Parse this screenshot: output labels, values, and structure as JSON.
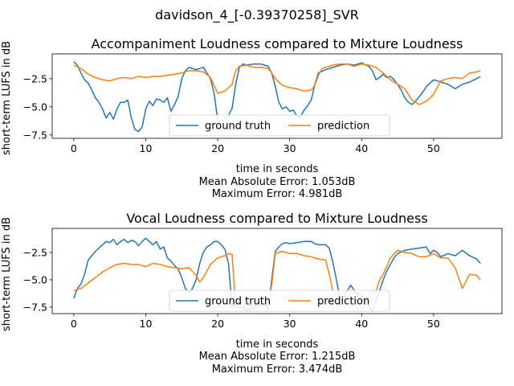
{
  "suptitle": "davidson_4_[-0.39370258]_SVR",
  "colors": {
    "ground_truth": "#1f77b4",
    "prediction": "#ff7f0e"
  },
  "chart_data": [
    {
      "type": "line",
      "title": "Accompaniment Loudness compared to Mixture Loudness",
      "xlabel": "time in seconds",
      "ylabel": "short-term LUFS in dB",
      "xlim": [
        -3,
        59.5
      ],
      "ylim": [
        -7.8,
        -0.3
      ],
      "xticks": [
        0,
        10,
        20,
        30,
        40,
        50
      ],
      "yticks": [
        -7.5,
        -5.0,
        -2.5
      ],
      "ytick_labels": [
        "−7.5",
        "−5.0",
        "−2.5"
      ],
      "legend": {
        "position": "lower center",
        "ncol": 2
      },
      "series": [
        {
          "name": "ground truth",
          "x": [
            0,
            0.5,
            1,
            1.5,
            2,
            2.5,
            3,
            3.5,
            4,
            4.5,
            5,
            5.5,
            6,
            6.5,
            7,
            7.5,
            8,
            8.5,
            9,
            9.5,
            10,
            10.5,
            11,
            11.5,
            12,
            12.5,
            13,
            13.5,
            14,
            14.5,
            15,
            15.5,
            16,
            16.5,
            17,
            17.5,
            18,
            18.5,
            19,
            19.5,
            20,
            20.5,
            21,
            21.5,
            22,
            22.5,
            23,
            23.5,
            24,
            25,
            26,
            27,
            27.5,
            28,
            28.5,
            29,
            29.5,
            30,
            30.5,
            31,
            31.5,
            32,
            32.5,
            33,
            33.5,
            34,
            35,
            36,
            37,
            38,
            39,
            40,
            41,
            41.5,
            42,
            42.5,
            43,
            43.5,
            44,
            44.5,
            45,
            45.5,
            46,
            46.5,
            47,
            47.5,
            48,
            48.5,
            49,
            49.5,
            50,
            51,
            52,
            53,
            54,
            55,
            56,
            56.5
          ],
          "values": [
            -1.0,
            -1.3,
            -2.0,
            -2.6,
            -2.9,
            -3.5,
            -4.2,
            -4.6,
            -5.2,
            -6.0,
            -5.5,
            -6.1,
            -5.2,
            -4.6,
            -4.6,
            -4.4,
            -6.0,
            -7.0,
            -7.2,
            -6.8,
            -5.2,
            -4.5,
            -4.9,
            -4.3,
            -4.4,
            -4.6,
            -4.2,
            -5.4,
            -4.8,
            -4.1,
            -2.5,
            -1.8,
            -1.5,
            -1.6,
            -1.7,
            -1.6,
            -1.5,
            -2.0,
            -2.5,
            -3.8,
            -6.2,
            -6.5,
            -6.1,
            -5.8,
            -5.1,
            -3.0,
            -1.5,
            -1.2,
            -1.3,
            -1.2,
            -1.2,
            -1.4,
            -2.0,
            -3.2,
            -4.6,
            -5.2,
            -5.0,
            -5.4,
            -5.3,
            -5.8,
            -5.9,
            -5.3,
            -4.9,
            -4.4,
            -3.0,
            -2.0,
            -1.7,
            -1.5,
            -1.3,
            -1.2,
            -1.3,
            -1.1,
            -1.4,
            -1.8,
            -2.6,
            -2.4,
            -2.1,
            -2.4,
            -2.3,
            -2.6,
            -3.0,
            -3.5,
            -4.2,
            -4.6,
            -4.8,
            -4.5,
            -4.1,
            -3.7,
            -3.2,
            -2.9,
            -2.6,
            -2.8,
            -3.0,
            -3.4,
            -3.0,
            -2.8,
            -2.5,
            -2.3
          ]
        },
        {
          "name": "prediction",
          "x": [
            0,
            1,
            2,
            3,
            4,
            5,
            6,
            7,
            8,
            9,
            10,
            11,
            12,
            13,
            14,
            15,
            15.5,
            16,
            17,
            18,
            19,
            19.5,
            20,
            21,
            21.5,
            22,
            22.5,
            23,
            24,
            25,
            26,
            27,
            27.5,
            28,
            29,
            30,
            31,
            32,
            33,
            33.5,
            34,
            34.5,
            35,
            36,
            37,
            38,
            39,
            40,
            41,
            42,
            43,
            44,
            45,
            46,
            47,
            48,
            49,
            50,
            51,
            52,
            53,
            54,
            55,
            56,
            56.5
          ],
          "values": [
            -1.3,
            -1.6,
            -2.1,
            -2.4,
            -2.6,
            -2.7,
            -2.5,
            -2.4,
            -2.5,
            -2.3,
            -2.4,
            -2.3,
            -2.3,
            -2.2,
            -2.1,
            -2.0,
            -1.9,
            -1.8,
            -1.8,
            -1.9,
            -2.4,
            -3.1,
            -3.8,
            -3.6,
            -3.3,
            -3.0,
            -1.8,
            -1.4,
            -1.3,
            -1.5,
            -1.5,
            -1.6,
            -2.0,
            -2.5,
            -3.1,
            -3.3,
            -3.4,
            -3.6,
            -3.5,
            -3.1,
            -2.2,
            -1.6,
            -1.5,
            -1.3,
            -1.2,
            -1.2,
            -1.4,
            -1.2,
            -1.3,
            -1.5,
            -2.0,
            -2.6,
            -3.0,
            -3.4,
            -4.4,
            -4.8,
            -4.5,
            -3.9,
            -2.7,
            -2.5,
            -2.4,
            -2.5,
            -2.0,
            -1.9,
            -1.8
          ]
        }
      ],
      "annotations": [
        "Mean Absolute Error: 1.053dB",
        "Maximum Error: 4.981dB"
      ]
    },
    {
      "type": "line",
      "title": "Vocal Loudness compared to Mixture Loudness",
      "xlabel": "time in seconds",
      "ylabel": "short-term LUFS in dB",
      "xlim": [
        -3,
        59.5
      ],
      "ylim": [
        -8.1,
        -0.3
      ],
      "xticks": [
        0,
        10,
        20,
        30,
        40,
        50
      ],
      "yticks": [
        -7.5,
        -5.0,
        -2.5
      ],
      "ytick_labels": [
        "−7.5",
        "−5.0",
        "−2.5"
      ],
      "legend": {
        "position": "lower center",
        "ncol": 2
      },
      "series": [
        {
          "name": "ground truth",
          "x": [
            0,
            0.5,
            1,
            1.5,
            2,
            2.5,
            3,
            3.5,
            4,
            4.5,
            5,
            5.5,
            6,
            6.5,
            7,
            7.5,
            8,
            8.5,
            9,
            9.5,
            10,
            10.5,
            11,
            11.5,
            12,
            12.5,
            13,
            13.5,
            14,
            14.5,
            15,
            15.5,
            16,
            16.5,
            17,
            17.5,
            18,
            18.5,
            19,
            19.5,
            20,
            20.5,
            21,
            21.5,
            22,
            22.5,
            23,
            23.5,
            24,
            25,
            26,
            26.5,
            27,
            27.5,
            28,
            28.5,
            29,
            29.5,
            30,
            31,
            32,
            33,
            33.5,
            34,
            35,
            35.5,
            36,
            36.5,
            37,
            37.5,
            38,
            38.5,
            39,
            39.5,
            40,
            40.5,
            41,
            41.5,
            42,
            42.5,
            43,
            43.5,
            44,
            44.5,
            45,
            46,
            47,
            48,
            49,
            49.5,
            50,
            50.5,
            51,
            52,
            53,
            54,
            55,
            56,
            56.5
          ],
          "values": [
            -6.7,
            -5.8,
            -5.4,
            -4.5,
            -3.2,
            -2.8,
            -2.4,
            -2.1,
            -1.8,
            -1.5,
            -1.6,
            -1.3,
            -1.8,
            -1.5,
            -1.3,
            -1.6,
            -1.4,
            -1.5,
            -1.9,
            -1.5,
            -1.2,
            -1.5,
            -1.8,
            -1.5,
            -2.2,
            -2.0,
            -3.0,
            -3.3,
            -3.7,
            -4.0,
            -4.8,
            -5.8,
            -6.2,
            -5.8,
            -5.0,
            -3.5,
            -2.5,
            -2.0,
            -1.8,
            -1.5,
            -1.5,
            -1.8,
            -2.2,
            -3.5,
            -7.5,
            -7.3,
            -7.6,
            -7.5,
            -7.8,
            -7.6,
            -7.3,
            -7.2,
            -7.7,
            -5.0,
            -2.4,
            -2.0,
            -1.7,
            -1.6,
            -1.7,
            -1.6,
            -1.5,
            -1.5,
            -1.7,
            -1.8,
            -1.8,
            -2.1,
            -3.4,
            -5.0,
            -6.8,
            -6.7,
            -6.0,
            -5.5,
            -6.0,
            -6.3,
            -6.5,
            -7.0,
            -7.5,
            -7.8,
            -6.8,
            -6.0,
            -5.0,
            -4.2,
            -3.6,
            -3.0,
            -2.6,
            -2.3,
            -2.2,
            -2.1,
            -2.0,
            -2.6,
            -2.3,
            -2.5,
            -2.9,
            -2.6,
            -2.8,
            -2.3,
            -2.8,
            -3.1,
            -3.5
          ]
        },
        {
          "name": "prediction",
          "x": [
            0,
            1,
            2,
            3,
            4,
            5,
            6,
            7,
            8,
            9,
            10,
            11,
            12,
            13,
            14,
            15,
            16,
            17,
            17.5,
            18,
            19,
            20,
            21,
            21.5,
            22,
            22.5,
            23,
            24,
            25,
            26,
            26.5,
            27,
            27.5,
            28,
            29,
            30,
            31,
            32,
            33,
            34,
            35,
            35.5,
            36,
            37,
            38,
            39,
            40,
            40.5,
            41,
            41.5,
            42,
            42.5,
            43,
            44,
            45,
            46,
            47,
            48,
            49,
            50,
            51,
            52,
            53,
            54,
            55,
            56,
            56.5
          ],
          "values": [
            -6.0,
            -5.8,
            -5.3,
            -4.8,
            -4.3,
            -3.9,
            -3.6,
            -3.5,
            -3.6,
            -3.6,
            -3.8,
            -3.5,
            -3.6,
            -3.8,
            -3.9,
            -4.0,
            -3.9,
            -4.6,
            -5.2,
            -4.8,
            -3.6,
            -3.0,
            -2.8,
            -2.6,
            -2.7,
            -7.5,
            -7.0,
            -7.3,
            -7.4,
            -7.0,
            -6.8,
            -7.5,
            -5.5,
            -2.6,
            -2.4,
            -2.6,
            -2.6,
            -2.8,
            -2.9,
            -3.1,
            -3.2,
            -4.5,
            -6.0,
            -6.4,
            -6.0,
            -6.2,
            -6.6,
            -7.0,
            -6.5,
            -6.0,
            -6.1,
            -5.0,
            -4.5,
            -3.0,
            -2.3,
            -2.5,
            -2.6,
            -2.9,
            -2.9,
            -2.6,
            -3.0,
            -3.0,
            -3.9,
            -5.8,
            -4.5,
            -4.6,
            -5.0
          ]
        }
      ],
      "annotations": [
        "Mean Absolute Error: 1.215dB",
        "Maximum Error: 3.474dB"
      ]
    }
  ]
}
